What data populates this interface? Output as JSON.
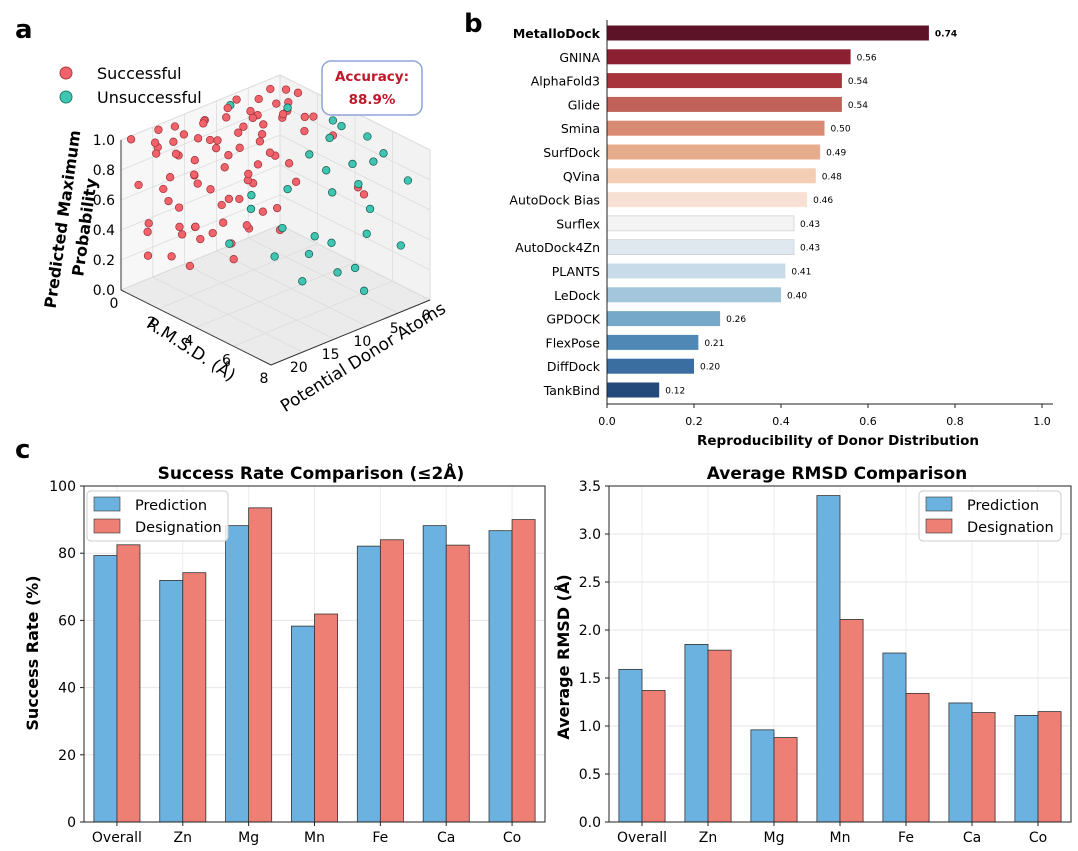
{
  "panel_labels": {
    "a": "a",
    "b": "b",
    "c": "c"
  },
  "colors": {
    "successful": "#f2626a",
    "unsuccessful": "#3fc6b2",
    "prediction": "#6cb2e0",
    "designation": "#ee7f74",
    "accuracy_text": "#c0182a",
    "accuracy_border": "#8fa3d8"
  },
  "chart_data": [
    {
      "id": "a",
      "type": "scatter",
      "subtype": "3d",
      "legend": [
        "Successful",
        "Unsuccessful"
      ],
      "legend_position": "top-left",
      "annotation": {
        "label": "Accuracy:",
        "value": "88.9%"
      },
      "xlabel": "R.M.S.D. (Å)",
      "ylabel": "Potential Donor Atoms",
      "zlabel_line1": "Predicted Maximum",
      "zlabel_line2": "Probability",
      "xticks": [
        "0",
        "2",
        "4",
        "6",
        "8"
      ],
      "yticks": [
        "0",
        "5",
        "10",
        "15",
        "20"
      ],
      "zticks": [
        "0.0",
        "0.2",
        "0.4",
        "0.6",
        "0.8",
        "1.0"
      ],
      "xlim": [
        0,
        8
      ],
      "ylim": [
        0,
        25
      ],
      "zlim": [
        0,
        1
      ],
      "series": [
        {
          "name": "Successful",
          "points": [
            [
              0.3,
              20,
              1.0
            ],
            [
              0.5,
              18,
              1.0
            ],
            [
              0.8,
              22,
              0.98
            ],
            [
              1.0,
              15,
              1.0
            ],
            [
              1.2,
              12,
              1.0
            ],
            [
              0.6,
              10,
              0.99
            ],
            [
              0.4,
              8,
              1.0
            ],
            [
              0.9,
              6,
              1.0
            ],
            [
              1.5,
              5,
              0.99
            ],
            [
              0.2,
              24,
              1.0
            ],
            [
              1.1,
              20,
              0.97
            ],
            [
              1.4,
              17,
              0.96
            ],
            [
              0.7,
              14,
              0.98
            ],
            [
              1.6,
              9,
              0.97
            ],
            [
              1.8,
              4,
              1.0
            ],
            [
              0.5,
              3,
              0.99
            ],
            [
              1.0,
              2,
              1.0
            ],
            [
              1.3,
              1,
              0.98
            ],
            [
              0.4,
              13,
              0.95
            ],
            [
              1.7,
              16,
              0.95
            ],
            [
              0.6,
              21,
              0.92
            ],
            [
              1.2,
              23,
              0.95
            ],
            [
              0.8,
              7,
              0.93
            ],
            [
              1.5,
              11,
              0.9
            ],
            [
              0.3,
              16,
              0.9
            ],
            [
              1.9,
              19,
              0.88
            ],
            [
              0.9,
              19,
              0.86
            ],
            [
              1.1,
              9,
              0.88
            ],
            [
              0.5,
              5,
              0.85
            ],
            [
              1.4,
              3,
              0.9
            ],
            [
              0.7,
              18,
              0.82
            ],
            [
              1.0,
              13,
              0.8
            ],
            [
              1.6,
              22,
              0.8
            ],
            [
              0.4,
              11,
              0.78
            ],
            [
              1.3,
              7,
              0.76
            ],
            [
              0.8,
              2,
              0.8
            ],
            [
              1.8,
              14,
              0.74
            ],
            [
              0.6,
              24,
              0.72
            ],
            [
              1.2,
              17,
              0.7
            ],
            [
              1.5,
              6,
              0.68
            ],
            [
              0.9,
              21,
              0.66
            ],
            [
              0.3,
              9,
              0.64
            ],
            [
              1.7,
              10,
              0.62
            ],
            [
              1.1,
              4,
              0.6
            ],
            [
              0.7,
              15,
              0.58
            ],
            [
              1.4,
              20,
              0.55
            ],
            [
              0.5,
              19,
              0.52
            ],
            [
              1.0,
              8,
              0.5
            ],
            [
              1.9,
              12,
              0.5
            ],
            [
              0.8,
              23,
              0.46
            ],
            [
              1.3,
              13,
              0.44
            ],
            [
              0.6,
              6,
              0.42
            ],
            [
              1.6,
              18,
              0.4
            ],
            [
              1.2,
              1,
              0.38
            ],
            [
              0.4,
              22,
              0.36
            ],
            [
              1.8,
              8,
              0.34
            ],
            [
              0.9,
              16,
              0.32
            ],
            [
              1.5,
              15,
              0.3
            ],
            [
              1.1,
              24,
              0.28
            ],
            [
              0.7,
              11,
              0.25
            ],
            [
              1.4,
              9,
              0.22
            ],
            [
              1.0,
              20,
              0.2
            ],
            [
              0.5,
              14,
              0.18
            ],
            [
              1.7,
              5,
              0.16
            ],
            [
              1.3,
              18,
              0.12
            ],
            [
              0.8,
              10,
              0.1
            ],
            [
              1.6,
              12,
              0.08
            ],
            [
              1.9,
              21,
              0.42
            ],
            [
              1.2,
              7,
              0.6
            ],
            [
              0.4,
              4,
              0.7
            ],
            [
              2.5,
              10,
              1.0
            ],
            [
              2.2,
              6,
              0.98
            ],
            [
              2.8,
              3,
              0.95
            ],
            [
              3.0,
              5,
              0.9
            ],
            [
              3.5,
              2,
              0.85
            ],
            [
              2.6,
              14,
              0.92
            ],
            [
              3.2,
              8,
              0.75
            ],
            [
              4.5,
              1,
              0.55
            ],
            [
              2.4,
              18,
              0.7
            ],
            [
              5.5,
              3,
              0.6
            ],
            [
              2.1,
              22,
              0.5
            ],
            [
              2.3,
              12,
              0.35
            ],
            [
              2.7,
              16,
              0.62
            ],
            [
              2.0,
              2,
              0.88
            ],
            [
              2.9,
              9,
              0.45
            ],
            [
              2.2,
              20,
              0.82
            ]
          ]
        },
        {
          "name": "Unsuccessful",
          "points": [
            [
              3.5,
              2,
              0.95
            ],
            [
              4.0,
              4,
              0.9
            ],
            [
              5.0,
              1,
              0.92
            ],
            [
              6.0,
              3,
              0.85
            ],
            [
              7.5,
              2,
              0.8
            ],
            [
              4.5,
              6,
              0.75
            ],
            [
              5.5,
              8,
              0.7
            ],
            [
              3.8,
              10,
              0.65
            ],
            [
              6.5,
              5,
              0.6
            ],
            [
              7.0,
              7,
              0.5
            ],
            [
              4.2,
              12,
              0.45
            ],
            [
              5.8,
              9,
              0.4
            ],
            [
              3.2,
              14,
              0.55
            ],
            [
              6.8,
              11,
              0.3
            ],
            [
              4.8,
              15,
              0.35
            ],
            [
              7.8,
              4,
              0.42
            ],
            [
              5.2,
              3,
              0.65
            ],
            [
              3.6,
              6,
              0.8
            ],
            [
              6.2,
              2,
              0.9
            ],
            [
              4.6,
              9,
              0.25
            ],
            [
              5.6,
              13,
              0.2
            ],
            [
              7.2,
              8,
              0.15
            ],
            [
              3.9,
              16,
              0.72
            ],
            [
              6.6,
              14,
              0.58
            ],
            [
              4.3,
              3,
              0.98
            ],
            [
              5.9,
              6,
              0.88
            ],
            [
              7.4,
              10,
              0.35
            ],
            [
              3.4,
              18,
              0.4
            ],
            [
              2.1,
              5,
              1.0
            ],
            [
              0.4,
              9,
              0.98
            ]
          ]
        }
      ]
    },
    {
      "id": "b",
      "type": "bar",
      "orientation": "horizontal",
      "xlabel": "Reproducibility of Donor Distribution",
      "xlim": [
        0,
        1.0
      ],
      "xticks": [
        "0.0",
        "0.2",
        "0.4",
        "0.6",
        "0.8",
        "1.0"
      ],
      "highlight": "MetalloDock",
      "categories": [
        "MetalloDock",
        "GNINA",
        "AlphaFold3",
        "Glide",
        "Smina",
        "SurfDock",
        "QVina",
        "AutoDock Bias",
        "Surflex",
        "AutoDock4Zn",
        "PLANTS",
        "LeDock",
        "GPDOCK",
        "FlexPose",
        "DiffDock",
        "TankBind"
      ],
      "values": [
        0.74,
        0.56,
        0.54,
        0.54,
        0.5,
        0.49,
        0.48,
        0.46,
        0.43,
        0.43,
        0.41,
        0.4,
        0.26,
        0.21,
        0.2,
        0.12
      ],
      "value_labels": [
        "0.74",
        "0.56",
        "0.54",
        "0.54",
        "0.50",
        "0.49",
        "0.48",
        "0.46",
        "0.43",
        "0.43",
        "0.41",
        "0.40",
        "0.26",
        "0.21",
        "0.20",
        "0.12"
      ],
      "bar_colors": [
        "#5c1327",
        "#8c1f32",
        "#a9333d",
        "#c0615a",
        "#d88a72",
        "#e7ac8e",
        "#f3cdb4",
        "#f7e1d5",
        "#f4f4f4",
        "#e0e8ef",
        "#c7dce8",
        "#a3c6dc",
        "#76a9c9",
        "#4f88b5",
        "#3a6ea0",
        "#244a7b"
      ]
    },
    {
      "id": "c1",
      "type": "bar",
      "title": "Success Rate Comparison (≤2Å)",
      "ylabel": "Success Rate (%)",
      "xlabel": "",
      "ylim": [
        0,
        100
      ],
      "yticks": [
        "0",
        "20",
        "40",
        "60",
        "80",
        "100"
      ],
      "legend_position": "top-left",
      "categories": [
        "Overall",
        "Zn",
        "Mg",
        "Mn",
        "Fe",
        "Ca",
        "Co"
      ],
      "series": [
        {
          "name": "Prediction",
          "values": [
            79.3,
            71.9,
            88.2,
            58.3,
            82.1,
            88.2,
            86.7
          ]
        },
        {
          "name": "Designation",
          "values": [
            82.5,
            74.2,
            93.5,
            61.9,
            84.0,
            82.4,
            90.0
          ]
        }
      ]
    },
    {
      "id": "c2",
      "type": "bar",
      "title": "Average RMSD Comparison",
      "ylabel": "Average RMSD (Å)",
      "xlabel": "",
      "ylim": [
        0,
        3.5
      ],
      "yticks": [
        "0.0",
        "0.5",
        "1.0",
        "1.5",
        "2.0",
        "2.5",
        "3.0",
        "3.5"
      ],
      "legend_position": "top-right",
      "categories": [
        "Overall",
        "Zn",
        "Mg",
        "Mn",
        "Fe",
        "Ca",
        "Co"
      ],
      "series": [
        {
          "name": "Prediction",
          "values": [
            1.59,
            1.85,
            0.96,
            3.4,
            1.76,
            1.24,
            1.11
          ]
        },
        {
          "name": "Designation",
          "values": [
            1.37,
            1.79,
            0.88,
            2.11,
            1.34,
            1.14,
            1.15
          ]
        }
      ]
    }
  ]
}
